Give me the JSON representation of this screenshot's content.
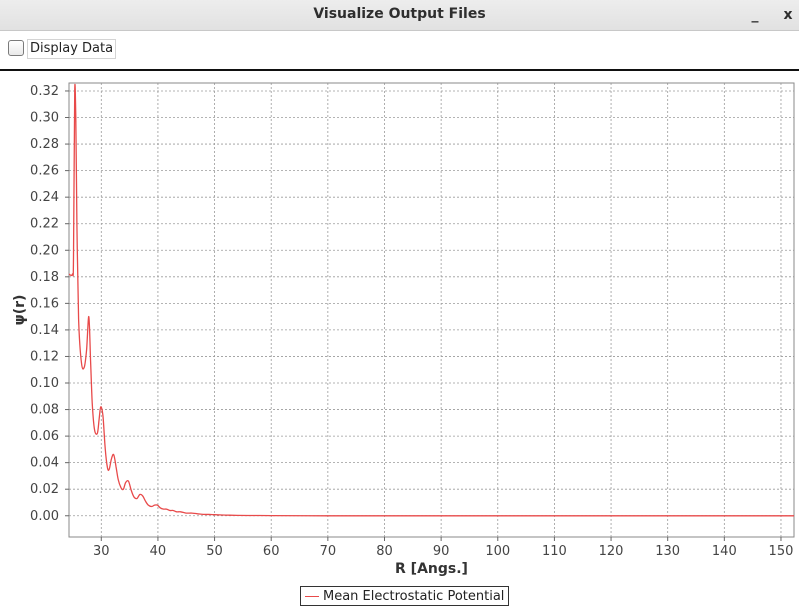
{
  "window": {
    "title": "Visualize Output Files",
    "minimize_glyph": "_",
    "close_glyph": "x"
  },
  "toolbar": {
    "display_data_label": "Display Data",
    "display_data_checked": false
  },
  "chart_data": {
    "type": "line",
    "title": "",
    "xlabel": "R [Angs.]",
    "ylabel": "ψ(r)",
    "xlim": [
      24.3,
      152.3
    ],
    "ylim": [
      -0.016,
      0.326
    ],
    "x_ticks": [
      30,
      40,
      50,
      60,
      70,
      80,
      90,
      100,
      110,
      120,
      130,
      140,
      150
    ],
    "y_ticks": [
      0.0,
      0.02,
      0.04,
      0.06,
      0.08,
      0.1,
      0.12,
      0.14,
      0.16,
      0.18,
      0.2,
      0.22,
      0.24,
      0.26,
      0.28,
      0.3,
      0.32
    ],
    "y_tick_labels": [
      "0.00",
      "0.02",
      "0.04",
      "0.06",
      "0.08",
      "0.10",
      "0.12",
      "0.14",
      "0.16",
      "0.18",
      "0.20",
      "0.22",
      "0.24",
      "0.26",
      "0.28",
      "0.30",
      "0.32"
    ],
    "grid": true,
    "legend": "bottom",
    "series": [
      {
        "name": "Mean Electrostatic Potential",
        "color": "#e84a4a",
        "x": [
          24.3,
          24.9,
          25.1,
          25.3,
          25.5,
          25.7,
          26.0,
          26.5,
          27.0,
          27.4,
          27.8,
          28.1,
          28.4,
          28.8,
          29.3,
          29.6,
          29.9,
          30.3,
          30.7,
          31.1,
          31.4,
          31.8,
          32.2,
          32.6,
          33.0,
          33.5,
          33.9,
          34.3,
          34.8,
          35.3,
          35.8,
          36.3,
          36.8,
          37.3,
          37.8,
          38.3,
          38.9,
          39.4,
          39.9,
          40.4,
          41.0,
          41.5,
          42.1,
          42.7,
          43.3,
          44.0,
          45.0,
          46.0,
          47.0,
          48.0,
          49.0,
          50.0,
          52.0,
          54.0,
          57.0,
          60.0,
          70.0,
          80.0,
          100.0,
          120.0,
          152.3
        ],
        "y": [
          0.182,
          0.182,
          0.195,
          0.318,
          0.3,
          0.22,
          0.148,
          0.115,
          0.112,
          0.125,
          0.15,
          0.118,
          0.085,
          0.065,
          0.062,
          0.072,
          0.082,
          0.075,
          0.05,
          0.036,
          0.035,
          0.043,
          0.046,
          0.037,
          0.027,
          0.021,
          0.02,
          0.025,
          0.026,
          0.019,
          0.014,
          0.013,
          0.016,
          0.015,
          0.011,
          0.008,
          0.007,
          0.008,
          0.008,
          0.006,
          0.005,
          0.005,
          0.004,
          0.004,
          0.003,
          0.003,
          0.002,
          0.002,
          0.0015,
          0.001,
          0.001,
          0.0008,
          0.0005,
          0.0003,
          0.0002,
          0.0001,
          0.0,
          0.0,
          0.0,
          0.0,
          0.0
        ]
      }
    ]
  }
}
